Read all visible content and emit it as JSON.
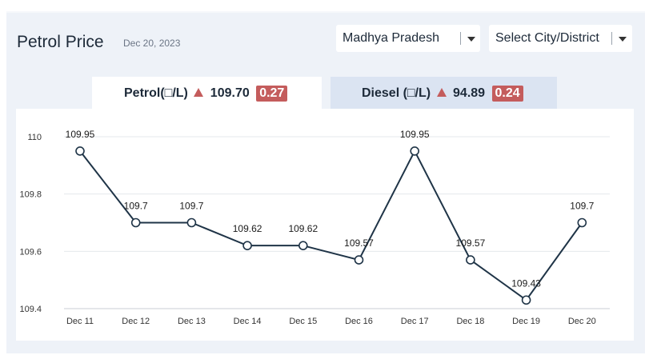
{
  "header": {
    "title": "Petrol Price",
    "date": "Dec 20, 2023"
  },
  "filters": {
    "state": "Madhya Pradesh",
    "city": "Select City/District"
  },
  "tabs": [
    {
      "label": "Petrol(□/L)",
      "price": "109.70",
      "change": "0.27"
    },
    {
      "label": "Diesel (□/L)",
      "price": "94.89",
      "change": "0.24"
    }
  ],
  "colors": {
    "line": "#1f3447",
    "grid": "#e5e8ec",
    "change_badge": "#c45c5c",
    "active_tab": "#ffffff",
    "inactive_tab": "#dbe4f2"
  },
  "chart_data": {
    "type": "line",
    "x": [
      "Dec 11",
      "Dec 12",
      "Dec 13",
      "Dec 14",
      "Dec 15",
      "Dec 16",
      "Dec 17",
      "Dec 18",
      "Dec 19",
      "Dec 20"
    ],
    "values": [
      109.95,
      109.7,
      109.7,
      109.62,
      109.62,
      109.57,
      109.95,
      109.57,
      109.43,
      109.7
    ],
    "data_labels": [
      "109.95",
      "109.7",
      "109.7",
      "109.62",
      "109.62",
      "109.57",
      "109.95",
      "109.57",
      "109.43",
      "109.7"
    ],
    "ylim": [
      109.4,
      110
    ],
    "yticks": [
      "110",
      "109.8",
      "109.6",
      "109.4"
    ],
    "ytick_values": [
      110,
      109.8,
      109.6,
      109.4
    ],
    "grid": true
  }
}
